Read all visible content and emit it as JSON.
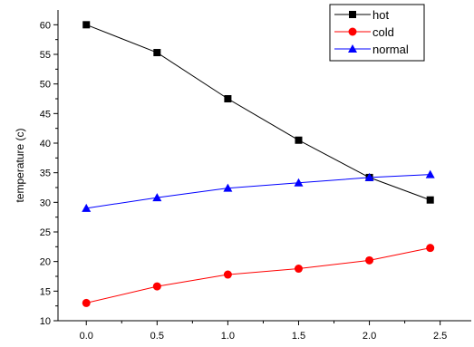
{
  "chart_data": {
    "type": "line",
    "title": "",
    "xlabel": "",
    "ylabel": "temperature (c)",
    "xlim": [
      -0.2,
      2.72
    ],
    "ylim": [
      10,
      62.5
    ],
    "xticks": [
      0.0,
      0.5,
      1.0,
      1.5,
      2.0,
      2.5
    ],
    "xtick_labels": [
      "0.0",
      "0.5",
      "1.0",
      "1.5",
      "2.0",
      "2.5"
    ],
    "yticks": [
      10,
      15,
      20,
      25,
      30,
      35,
      40,
      45,
      50,
      55,
      60
    ],
    "ytick_labels": [
      "10",
      "15",
      "20",
      "25",
      "30",
      "35",
      "40",
      "45",
      "50",
      "55",
      "60"
    ],
    "grid": false,
    "legend_position": "top-right",
    "series": [
      {
        "name": "hot",
        "color": "#000000",
        "marker": "square",
        "x": [
          0.0,
          0.5,
          1.0,
          1.5,
          2.0,
          2.43
        ],
        "values": [
          60.0,
          55.3,
          47.5,
          40.5,
          34.2,
          30.4
        ]
      },
      {
        "name": "cold",
        "color": "#ff0000",
        "marker": "circle",
        "x": [
          0.0,
          0.5,
          1.0,
          1.5,
          2.0,
          2.43
        ],
        "values": [
          13.0,
          15.8,
          17.8,
          18.8,
          20.2,
          22.3
        ]
      },
      {
        "name": "normal",
        "color": "#0000ff",
        "marker": "triangle",
        "x": [
          0.0,
          0.5,
          1.0,
          1.5,
          2.0,
          2.43
        ],
        "values": [
          29.0,
          30.8,
          32.4,
          33.3,
          34.2,
          34.7
        ]
      }
    ]
  }
}
